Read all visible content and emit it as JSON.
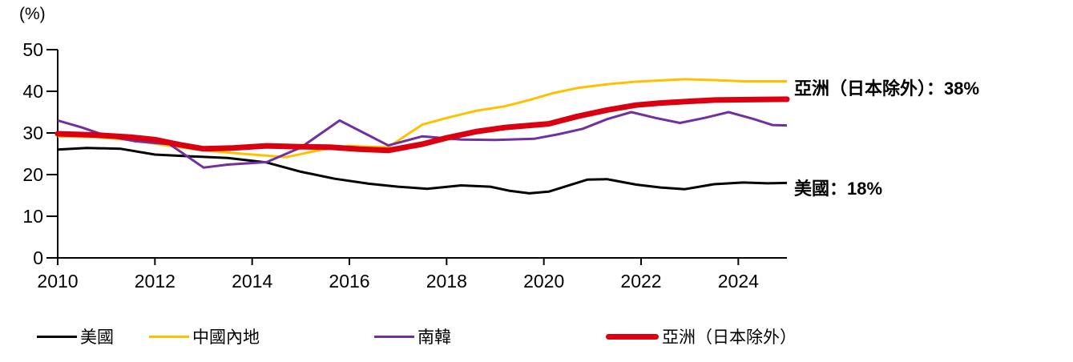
{
  "unit_label": "(%)",
  "annotations": {
    "asia_ex_japan": "亞洲（日本除外）：38%",
    "us": "美國：18%"
  },
  "legend": [
    {
      "id": "us",
      "label": "美國",
      "color": "#000000",
      "thick": false
    },
    {
      "id": "china-mainland",
      "label": "中國內地",
      "color": "#FFC000",
      "thick": false
    },
    {
      "id": "south-korea",
      "label": "南韓",
      "color": "#7030A0",
      "thick": false
    },
    {
      "id": "asia-ex-japan",
      "label": "亞洲（日本除外）",
      "color": "#DB0011",
      "thick": true
    }
  ],
  "chart_data": {
    "type": "line",
    "title": "",
    "xlabel": "",
    "ylabel": "(%)",
    "xlim": [
      2010,
      2025
    ],
    "ylim": [
      0,
      50
    ],
    "yticks": [
      0,
      10,
      20,
      30,
      40,
      50
    ],
    "xticks": [
      2010,
      2012,
      2014,
      2016,
      2018,
      2020,
      2022,
      2024
    ],
    "grid": false,
    "legend_position": "bottom",
    "end_labels": {
      "asia-ex-japan": "38%",
      "us": "18%"
    },
    "series": [
      {
        "id": "us",
        "name": "美國",
        "color": "#000000",
        "width": 3,
        "points": [
          [
            2010,
            26.0
          ],
          [
            2010.6,
            26.4
          ],
          [
            2011.3,
            26.2
          ],
          [
            2012,
            24.8
          ],
          [
            2012.7,
            24.4
          ],
          [
            2013.5,
            24.0
          ],
          [
            2014.3,
            22.9
          ],
          [
            2015,
            20.7
          ],
          [
            2015.7,
            19.0
          ],
          [
            2016.4,
            17.8
          ],
          [
            2017,
            17.1
          ],
          [
            2017.6,
            16.6
          ],
          [
            2018.3,
            17.4
          ],
          [
            2018.9,
            17.1
          ],
          [
            2019.3,
            16.1
          ],
          [
            2019.7,
            15.5
          ],
          [
            2020.1,
            15.9
          ],
          [
            2020.9,
            18.8
          ],
          [
            2021.3,
            18.9
          ],
          [
            2021.9,
            17.6
          ],
          [
            2022.4,
            16.9
          ],
          [
            2022.9,
            16.5
          ],
          [
            2023.5,
            17.7
          ],
          [
            2024.1,
            18.1
          ],
          [
            2024.6,
            17.9
          ],
          [
            2025,
            18.0
          ]
        ]
      },
      {
        "id": "china-mainland",
        "name": "中國內地",
        "color": "#FFC000",
        "width": 3,
        "points": [
          [
            2010,
            29.2
          ],
          [
            2010.8,
            29.0
          ],
          [
            2011.5,
            28.3
          ],
          [
            2012.3,
            26.9
          ],
          [
            2013,
            25.8
          ],
          [
            2013.8,
            25.0
          ],
          [
            2014.7,
            24.2
          ],
          [
            2015.4,
            25.9
          ],
          [
            2016,
            26.9
          ],
          [
            2016.4,
            26.7
          ],
          [
            2016.8,
            26.6
          ],
          [
            2017.5,
            32.0
          ],
          [
            2018,
            33.6
          ],
          [
            2018.6,
            35.3
          ],
          [
            2019.2,
            36.4
          ],
          [
            2019.7,
            37.9
          ],
          [
            2020.2,
            39.6
          ],
          [
            2020.7,
            40.8
          ],
          [
            2021.3,
            41.7
          ],
          [
            2021.9,
            42.3
          ],
          [
            2022.9,
            42.9
          ],
          [
            2023.5,
            42.7
          ],
          [
            2024.1,
            42.4
          ],
          [
            2024.6,
            42.4
          ],
          [
            2025,
            42.4
          ]
        ]
      },
      {
        "id": "south-korea",
        "name": "南韓",
        "color": "#7030A0",
        "width": 3,
        "points": [
          [
            2010,
            33.0
          ],
          [
            2010.5,
            31.3
          ],
          [
            2011,
            29.3
          ],
          [
            2011.6,
            28.0
          ],
          [
            2012.3,
            27.3
          ],
          [
            2013,
            21.7
          ],
          [
            2013.5,
            22.4
          ],
          [
            2014.3,
            23.0
          ],
          [
            2015,
            26.5
          ],
          [
            2015.8,
            33.0
          ],
          [
            2016.3,
            30.0
          ],
          [
            2016.8,
            27.0
          ],
          [
            2017.5,
            29.2
          ],
          [
            2018.3,
            28.4
          ],
          [
            2019,
            28.3
          ],
          [
            2019.8,
            28.6
          ],
          [
            2020.3,
            29.7
          ],
          [
            2020.8,
            31.0
          ],
          [
            2021.3,
            33.3
          ],
          [
            2021.8,
            35.0
          ],
          [
            2022.3,
            33.6
          ],
          [
            2022.8,
            32.4
          ],
          [
            2023.3,
            33.6
          ],
          [
            2023.8,
            35.0
          ],
          [
            2024.3,
            33.4
          ],
          [
            2024.7,
            31.9
          ],
          [
            2025,
            31.8
          ]
        ]
      },
      {
        "id": "asia-ex-japan",
        "name": "亞洲（日本除外）",
        "color": "#DB0011",
        "width": 7,
        "points": [
          [
            2010,
            29.8
          ],
          [
            2010.8,
            29.5
          ],
          [
            2011.5,
            29.0
          ],
          [
            2012,
            28.4
          ],
          [
            2012.5,
            27.2
          ],
          [
            2013,
            26.2
          ],
          [
            2013.6,
            26.4
          ],
          [
            2014.3,
            26.9
          ],
          [
            2015,
            26.7
          ],
          [
            2015.6,
            26.6
          ],
          [
            2016.2,
            26.1
          ],
          [
            2016.8,
            25.8
          ],
          [
            2017.5,
            27.3
          ],
          [
            2018,
            28.8
          ],
          [
            2018.6,
            30.3
          ],
          [
            2019.2,
            31.3
          ],
          [
            2019.7,
            31.8
          ],
          [
            2020.1,
            32.2
          ],
          [
            2020.7,
            34.0
          ],
          [
            2021.3,
            35.5
          ],
          [
            2021.9,
            36.7
          ],
          [
            2022.4,
            37.2
          ],
          [
            2023,
            37.6
          ],
          [
            2023.5,
            37.9
          ],
          [
            2024.2,
            38.0
          ],
          [
            2025,
            38.1
          ]
        ]
      }
    ]
  }
}
